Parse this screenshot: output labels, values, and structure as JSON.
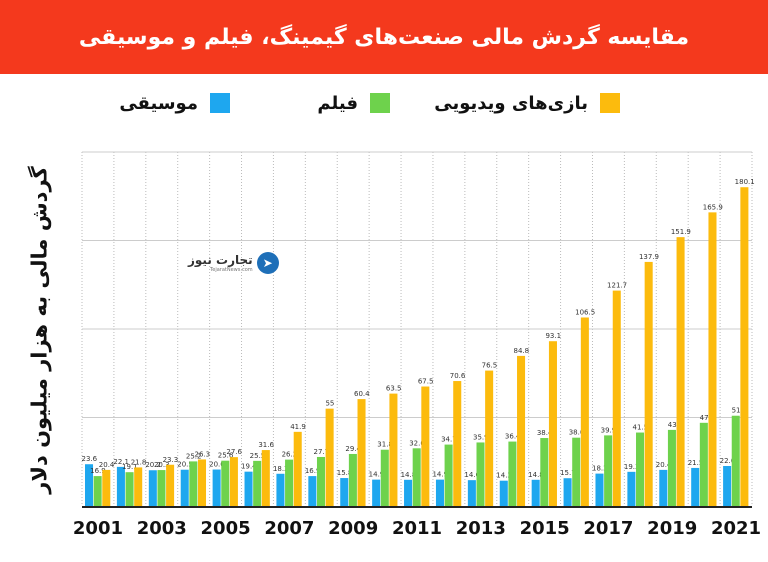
{
  "colors": {
    "header_bg": "#f4391d",
    "music": "#1ea7ef",
    "film": "#6ed24c",
    "games": "#fcbb0d",
    "grid": "#bbbbbb"
  },
  "logo": {
    "name": "تجارت نیوز",
    "site": "TejaratNews.com",
    "icon": "paper-plane-icon"
  },
  "chart_data": {
    "type": "bar",
    "title": "مقایسه گردش مالی صنعت‌های گیمینگ، فیلم و موسیقی",
    "xlabel": "",
    "ylabel": "گردش مالی به هزار میلیون دلار",
    "ylim": [
      0,
      200
    ],
    "grid": true,
    "legend_position": "top",
    "categories": [
      "2001",
      "2002",
      "2003",
      "2004",
      "2005",
      "2006",
      "2007",
      "2008",
      "2009",
      "2010",
      "2011",
      "2012",
      "2013",
      "2014",
      "2015",
      "2016",
      "2017",
      "2018",
      "2019",
      "2020",
      "2021"
    ],
    "x_tick_labels": [
      "2001",
      "2003",
      "2005",
      "2007",
      "2009",
      "2011",
      "2013",
      "2015",
      "2017",
      "2019",
      "2021"
    ],
    "series": [
      {
        "name": "موسیقی",
        "color": "#1ea7ef",
        "values": [
          23.6,
          22.1,
          20.2,
          20.5,
          20.6,
          19.4,
          18.2,
          16.9,
          15.8,
          14.9,
          14.8,
          14.9,
          14.6,
          14.3,
          14.8,
          15.7,
          18.3,
          19.3,
          20.4,
          21.5,
          22.6
        ]
      },
      {
        "name": "فیلم",
        "color": "#6ed24c",
        "values": [
          16.9,
          19.1,
          20.3,
          25.2,
          25.6,
          25.5,
          26.2,
          27.7,
          29.4,
          31.8,
          32.6,
          34.7,
          35.9,
          36.4,
          38.4,
          38.6,
          39.9,
          41.5,
          43,
          47,
          51
        ]
      },
      {
        "name": "بازی‌های ویدیویی",
        "color": "#fcbb0d",
        "values": [
          20.4,
          21.8,
          23.3,
          26.3,
          27.6,
          31.6,
          41.9,
          55,
          60.4,
          63.5,
          67.5,
          70.6,
          76.5,
          84.8,
          93.1,
          106.5,
          121.7,
          137.9,
          151.9,
          165.9,
          180.1
        ]
      }
    ]
  }
}
